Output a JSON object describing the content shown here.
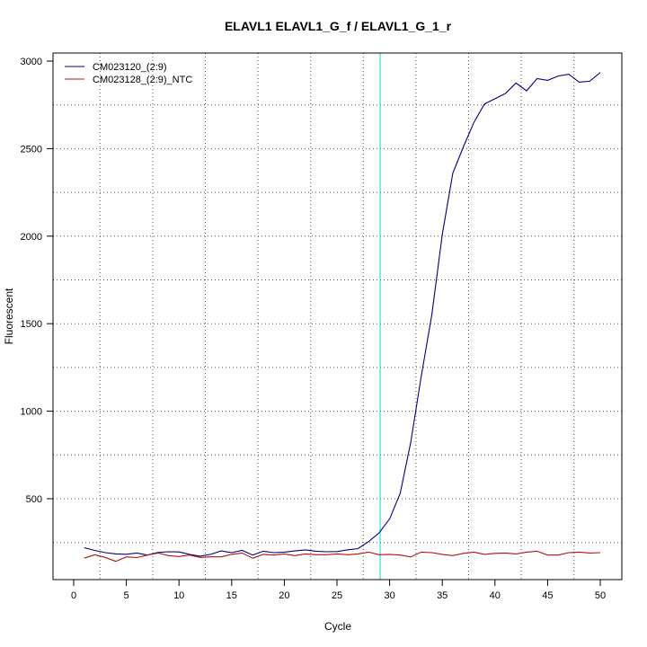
{
  "chart_data": {
    "type": "line",
    "title": "ELAVL1  ELAVL1_G_f / ELAVL1_G_1_r",
    "xlabel": "Cycle",
    "ylabel": "Fluorescent",
    "xlim": [
      0,
      50
    ],
    "ylim": [
      0,
      3000
    ],
    "x_ticks": [
      0,
      5,
      10,
      15,
      20,
      25,
      30,
      35,
      40,
      45,
      50
    ],
    "y_ticks": [
      500,
      1000,
      1500,
      2000,
      2500,
      3000
    ],
    "grid": true,
    "legend_position": "top-left",
    "threshold_cycle": 29.1,
    "threshold_color": "#00d8e8",
    "x": [
      1,
      2,
      3,
      4,
      5,
      6,
      7,
      8,
      9,
      10,
      11,
      12,
      13,
      14,
      15,
      16,
      17,
      18,
      19,
      20,
      21,
      22,
      23,
      24,
      25,
      26,
      27,
      28,
      29,
      30,
      31,
      32,
      33,
      34,
      35,
      36,
      37,
      38,
      39,
      40,
      41,
      42,
      43,
      44,
      45,
      46,
      47,
      48,
      49,
      50
    ],
    "series": [
      {
        "name": "CM023120_(2:9)",
        "color": "#000080",
        "values": [
          220,
          205,
          192,
          185,
          183,
          190,
          178,
          193,
          197,
          196,
          182,
          172,
          182,
          202,
          192,
          205,
          178,
          200,
          192,
          195,
          202,
          208,
          200,
          197,
          198,
          208,
          215,
          255,
          305,
          385,
          530,
          820,
          1200,
          1550,
          2010,
          2360,
          2510,
          2650,
          2755,
          2785,
          2815,
          2875,
          2830,
          2900,
          2890,
          2915,
          2925,
          2880,
          2885,
          2935
        ]
      },
      {
        "name": "CM023128_(2:9)_NTC",
        "color": "#b01010",
        "values": [
          160,
          180,
          165,
          142,
          168,
          164,
          178,
          190,
          175,
          170,
          178,
          165,
          168,
          168,
          182,
          190,
          160,
          182,
          178,
          185,
          175,
          185,
          180,
          180,
          185,
          180,
          185,
          195,
          180,
          182,
          178,
          168,
          195,
          192,
          182,
          175,
          188,
          195,
          182,
          188,
          190,
          185,
          195,
          200,
          178,
          178,
          192,
          195,
          190,
          192
        ]
      }
    ]
  }
}
